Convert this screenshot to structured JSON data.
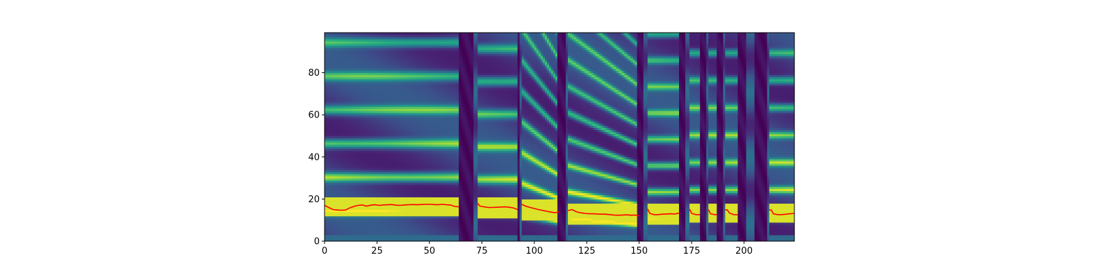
{
  "chart_data": {
    "type": "heatmap",
    "title": "",
    "xlabel": "",
    "ylabel": "",
    "xlim": [
      0,
      224
    ],
    "ylim": [
      0,
      99
    ],
    "x_ticks": [
      0,
      25,
      50,
      75,
      100,
      125,
      150,
      175,
      200
    ],
    "y_ticks": [
      0,
      20,
      40,
      60,
      80
    ],
    "x_tick_labels": [
      "0",
      "25",
      "50",
      "75",
      "100",
      "125",
      "150",
      "175",
      "200"
    ],
    "y_tick_labels": [
      "0",
      "20",
      "40",
      "60",
      "80"
    ],
    "colormap": "viridis",
    "grid": false,
    "silence_frames": [
      [
        64,
        71
      ],
      [
        92,
        93
      ],
      [
        111,
        115
      ],
      [
        149,
        152
      ],
      [
        169,
        172
      ],
      [
        179,
        182
      ],
      [
        187,
        190
      ],
      [
        197,
        201
      ],
      [
        205,
        211
      ]
    ],
    "segments": [
      {
        "x0": 0,
        "x1": 64,
        "f0": 16
      },
      {
        "x0": 73,
        "x1": 92,
        "f0": 15.5
      },
      {
        "x0": 94,
        "x1": 112,
        "f0": 14.5
      },
      {
        "x0": 116,
        "x1": 150,
        "f0": 12.5
      },
      {
        "x0": 154,
        "x1": 169,
        "f0": 12.5
      },
      {
        "x0": 174,
        "x1": 179,
        "f0": 13
      },
      {
        "x0": 183,
        "x1": 187,
        "f0": 13
      },
      {
        "x0": 191,
        "x1": 197,
        "f0": 13
      },
      {
        "x0": 212,
        "x1": 224,
        "f0": 13
      }
    ],
    "series": [
      {
        "color": "#ff0000",
        "segments": [
          {
            "x": [
              0,
              2,
              4,
              6,
              8,
              10,
              12,
              14,
              16,
              18,
              20,
              22,
              24,
              26,
              28,
              30,
              32,
              34,
              36,
              38,
              40,
              42,
              44,
              46,
              48,
              50,
              52,
              54,
              56,
              58,
              60,
              62,
              64
            ],
            "y": [
              17,
              16,
              15,
              14.8,
              14.7,
              14.8,
              15.8,
              16.5,
              17,
              17.2,
              16.6,
              17.1,
              17.3,
              17.0,
              17.2,
              17.3,
              17.4,
              17.1,
              17.0,
              17.2,
              17.3,
              17.4,
              17.3,
              17.4,
              17.5,
              17.5,
              17.4,
              17.3,
              17.5,
              17.3,
              17.2,
              16.5,
              16.3
            ]
          },
          {
            "x": [
              73,
              74,
              76,
              78,
              80,
              82,
              84,
              86,
              88,
              90,
              92
            ],
            "y": [
              18,
              16.7,
              16.3,
              16.0,
              16.0,
              16.1,
              16.2,
              16.3,
              16.1,
              15.8,
              15.0
            ]
          },
          {
            "x": [
              94,
              96,
              98,
              100,
              102,
              104,
              106,
              108,
              110,
              112
            ],
            "y": [
              17.5,
              16.6,
              16.0,
              15.5,
              15.0,
              14.6,
              14.2,
              13.8,
              13.5,
              14.0
            ]
          },
          {
            "x": [
              116,
              118,
              120,
              122,
              124,
              126,
              128,
              130,
              132,
              134,
              136,
              138,
              140,
              142,
              144,
              146,
              148,
              150
            ],
            "y": [
              14.5,
              15.0,
              14.0,
              13.5,
              13.2,
              13.0,
              13.0,
              12.9,
              12.8,
              12.8,
              12.6,
              12.4,
              12.3,
              12.4,
              12.5,
              12.3,
              12.4,
              12.0
            ]
          },
          {
            "x": [
              154,
              155,
              157,
              159,
              161,
              163,
              165,
              167,
              169
            ],
            "y": [
              15.3,
              13.2,
              12.6,
              12.6,
              12.8,
              12.9,
              13.0,
              12.9,
              13.3
            ]
          },
          {
            "x": [
              174,
              175,
              177,
              179
            ],
            "y": [
              15.2,
              13.2,
              12.6,
              12.6
            ]
          },
          {
            "x": [
              183,
              184,
              186,
              187
            ],
            "y": [
              15.0,
              13.0,
              12.6,
              12.6
            ]
          },
          {
            "x": [
              191,
              192,
              193,
              195,
              197
            ],
            "y": [
              14.8,
              14.9,
              13.4,
              12.6,
              12.5
            ]
          },
          {
            "x": [
              212,
              213,
              214,
              216,
              218,
              220,
              222,
              224
            ],
            "y": [
              14.8,
              14.8,
              13.0,
              12.6,
              12.6,
              12.8,
              13.0,
              13.2
            ]
          }
        ]
      }
    ]
  }
}
